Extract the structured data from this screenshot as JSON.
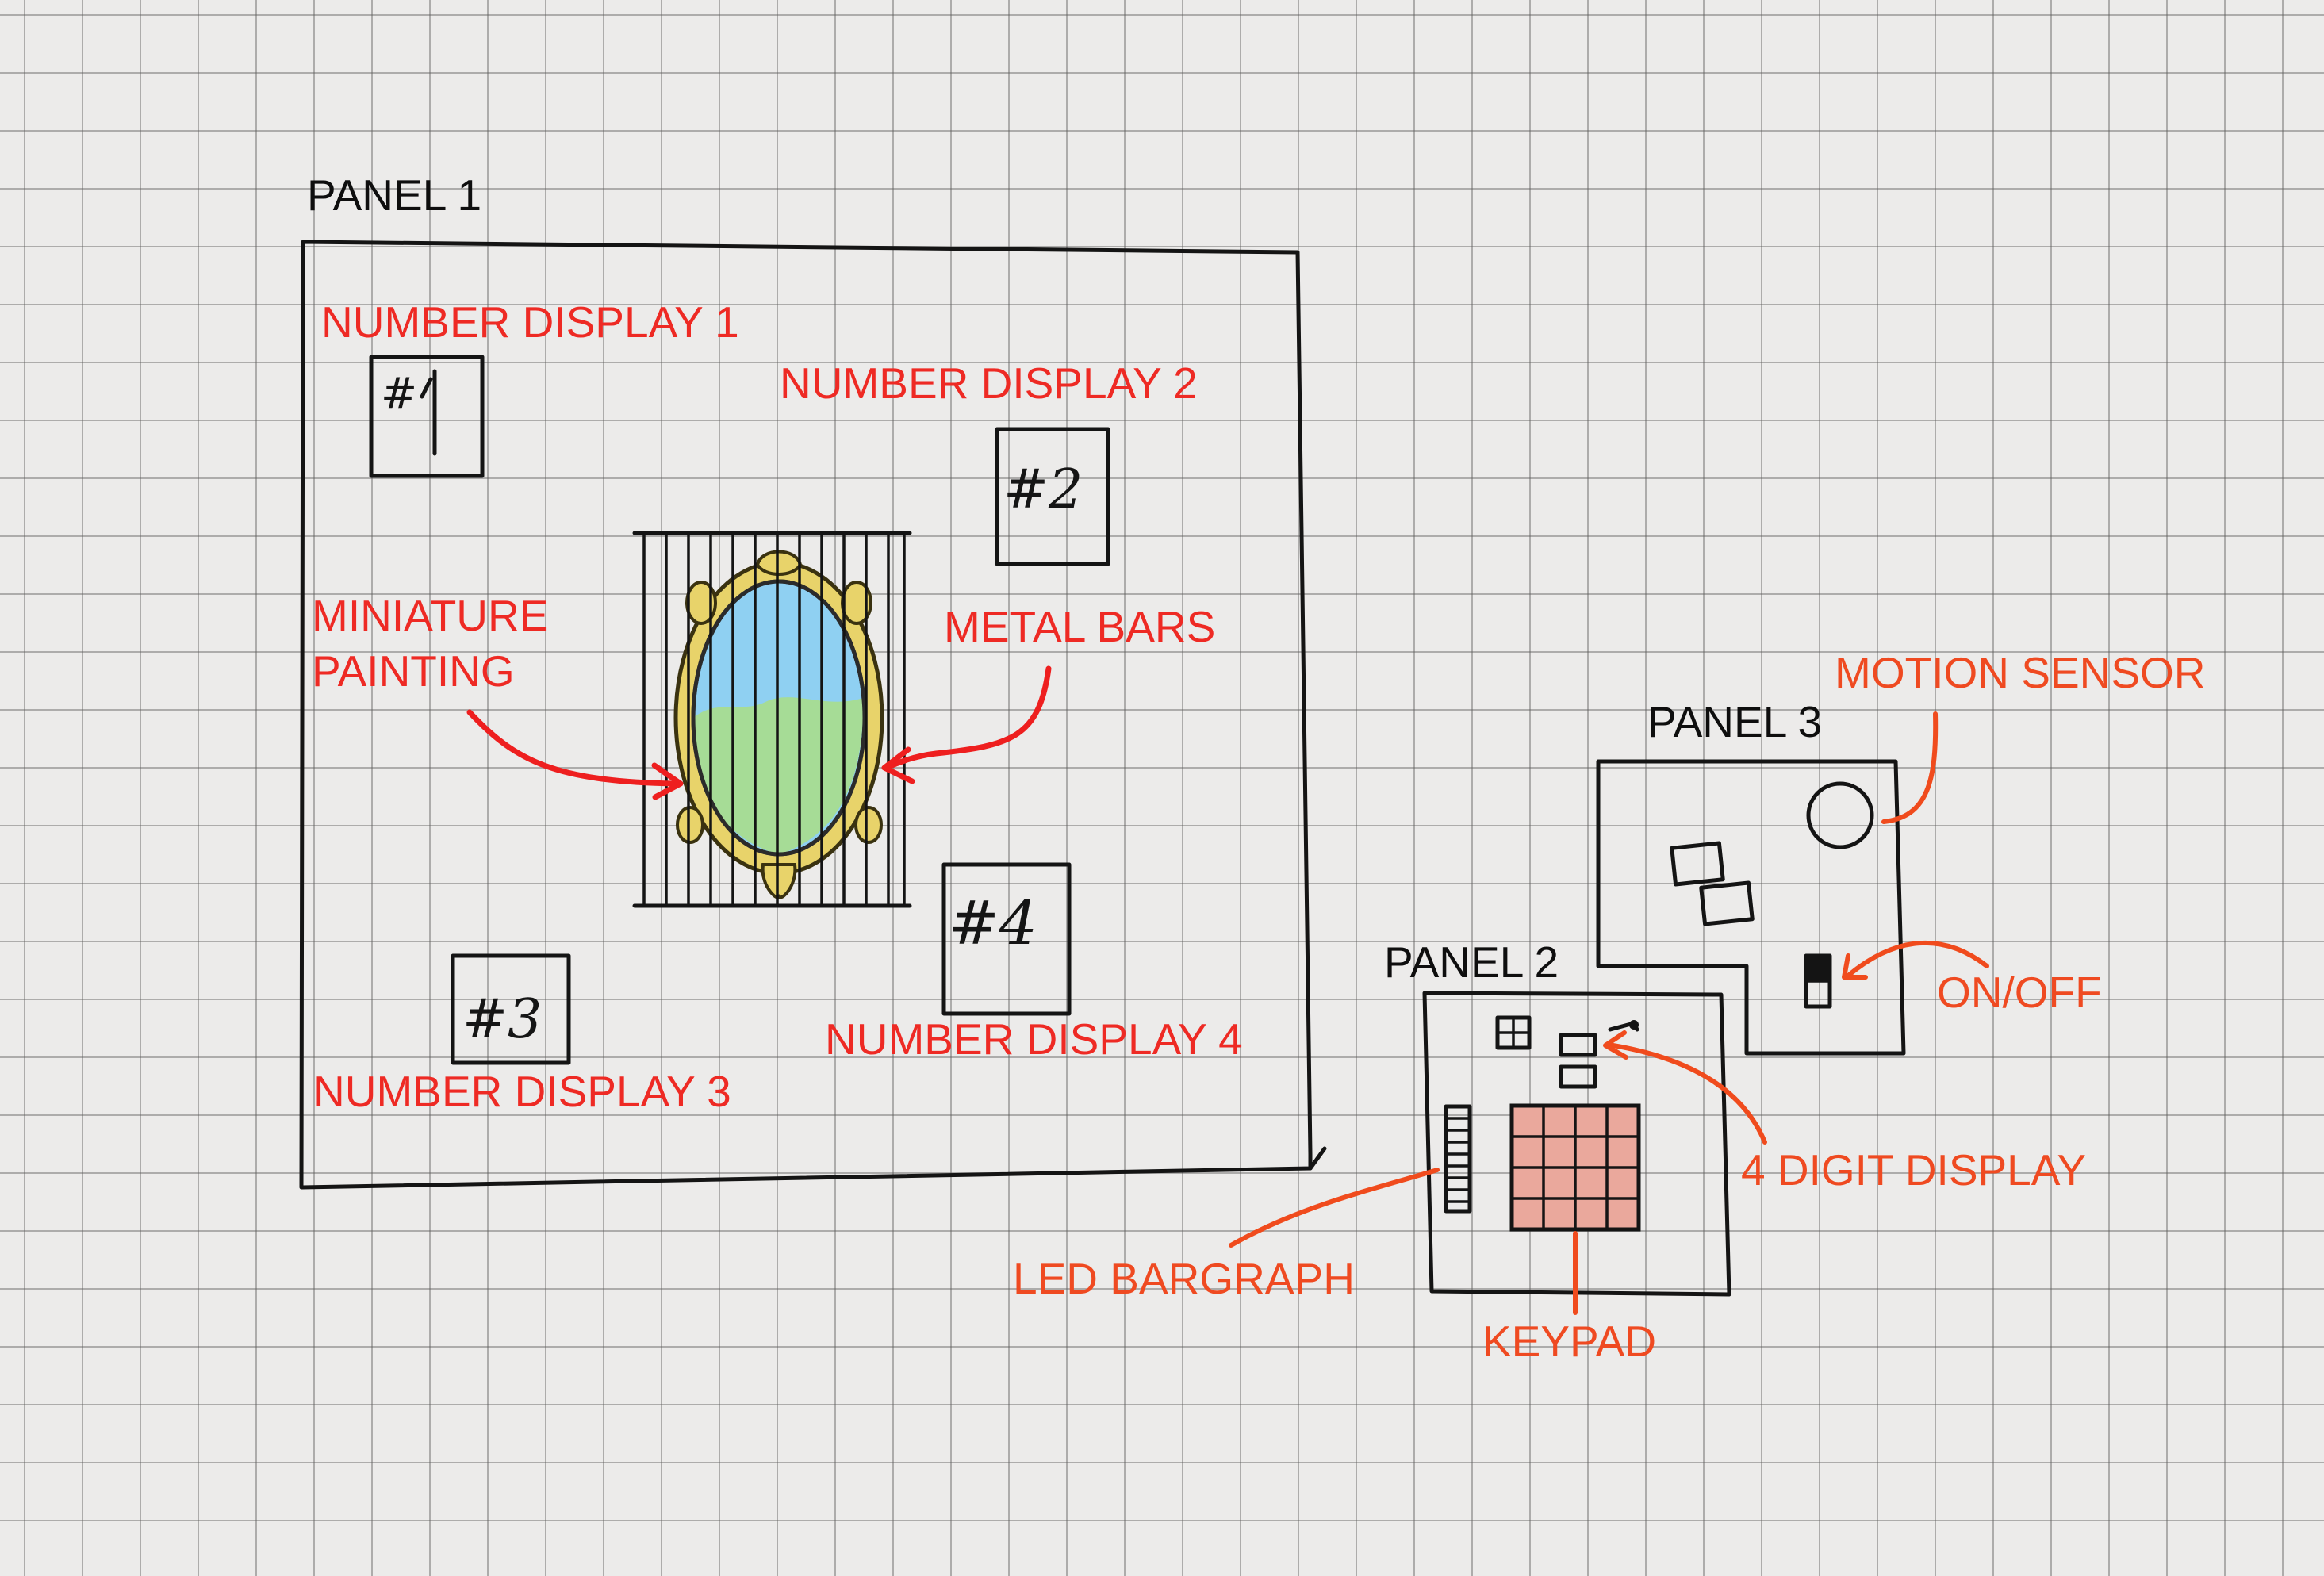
{
  "panels": {
    "panel1": "PANEL 1",
    "panel2": "PANEL 2",
    "panel3": "PANEL 3"
  },
  "labels": {
    "number_display_1": "NUMBER DISPLAY 1",
    "number_display_2": "NUMBER DISPLAY 2",
    "number_display_3": "NUMBER DISPLAY 3",
    "number_display_4": "NUMBER DISPLAY 4",
    "miniature_painting_line1": "MINIATURE",
    "miniature_painting_line2": "PAINTING",
    "metal_bars": "METAL BARS",
    "motion_sensor": "MOTION SENSOR",
    "on_off": "ON/OFF",
    "four_digit_display": "4 DIGIT DISPLAY",
    "led_bargraph": "LED BARGRAPH",
    "keypad": "KEYPAD"
  },
  "display_marks": {
    "d1": "#1",
    "d2": "#2",
    "d3": "#3",
    "d4": "#4"
  },
  "colors": {
    "label_red": "#ee2a24",
    "label_orange": "#ef4a21",
    "ink": "#141414",
    "keypad_fill": "#eaa89c",
    "painting_sky": "#8fd0f2",
    "painting_grass": "#a6dc96",
    "frame_gold": "#e8d36a"
  }
}
